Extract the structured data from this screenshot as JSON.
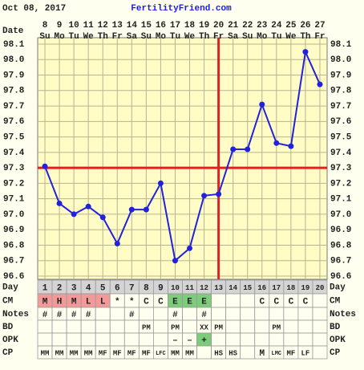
{
  "chart_data": {
    "type": "line",
    "title": "FertilityFriend.com",
    "subtitle": "Oct 08, 2017",
    "x_label": "Date",
    "categories": [
      "8",
      "9",
      "10",
      "11",
      "12",
      "13",
      "14",
      "15",
      "16",
      "17",
      "18",
      "19",
      "20",
      "21",
      "22",
      "23",
      "24",
      "25",
      "26",
      "27"
    ],
    "weekdays": [
      "Su",
      "Mo",
      "Tu",
      "We",
      "Th",
      "Fr",
      "Sa",
      "Su",
      "Mo",
      "Tu",
      "We",
      "Th",
      "Fr",
      "Sa",
      "Su",
      "Mo",
      "Tu",
      "We",
      "Th",
      "Fr"
    ],
    "series": [
      {
        "color": "#2222dd",
        "values": [
          97.31,
          97.07,
          97.0,
          97.05,
          96.98,
          96.81,
          97.03,
          97.03,
          97.2,
          96.7,
          96.78,
          97.12,
          97.13,
          97.42,
          97.42,
          97.71,
          97.46,
          97.44,
          98.05,
          97.84
        ]
      }
    ],
    "ylim": [
      96.6,
      98.1
    ],
    "yticks": [
      96.6,
      96.7,
      96.8,
      96.9,
      {
        "value": 97,
        "label": "97.0"
      },
      97.1,
      97.2,
      97.3,
      97.4,
      97.5,
      97.6,
      97.7,
      97.8,
      97.9,
      {
        "value": 98,
        "label": "98.0"
      },
      98.1
    ],
    "grid": true,
    "coverline": 97.3,
    "coverline_color": "#dd2222",
    "ovulation_day": 13,
    "ovulation_color": "#dd2222"
  },
  "table": {
    "rows": [
      {
        "label": "Day",
        "cells": [
          1,
          2,
          3,
          4,
          5,
          6,
          7,
          8,
          9,
          10,
          11,
          12,
          13,
          14,
          15,
          16,
          17,
          18,
          19,
          20
        ],
        "fill": "#d4d4d4"
      },
      {
        "label": "CM",
        "cells": [
          "M",
          "H",
          "M",
          "L",
          "L",
          "*",
          "*",
          "C",
          "C",
          "E",
          "E",
          "E",
          null,
          null,
          null,
          "C",
          "C",
          "C",
          "C",
          null
        ],
        "colors": [
          "#f29a9a",
          "#f29a9a",
          "#f29a9a",
          "#f29a9a",
          "#f29a9a",
          null,
          null,
          null,
          null,
          "#7ccc7c",
          "#7ccc7c",
          "#7ccc7c",
          null,
          null,
          null,
          null,
          null,
          null,
          null,
          null
        ]
      },
      {
        "label": "Notes",
        "cells": [
          "#",
          "#",
          "#",
          "#",
          null,
          null,
          "#",
          null,
          null,
          "#",
          null,
          "#",
          null,
          null,
          null,
          null,
          null,
          null,
          null,
          null
        ]
      },
      {
        "label": "BD",
        "cells": [
          null,
          null,
          null,
          null,
          null,
          null,
          null,
          "PM",
          null,
          "PM",
          null,
          "XX",
          "PM",
          null,
          null,
          null,
          "PM",
          null,
          null,
          null
        ]
      },
      {
        "label": "OPK",
        "cells": [
          null,
          null,
          null,
          null,
          null,
          null,
          null,
          null,
          null,
          "–",
          "–",
          "+",
          null,
          null,
          null,
          null,
          null,
          null,
          null,
          null
        ],
        "colors": [
          null,
          null,
          null,
          null,
          null,
          null,
          null,
          null,
          null,
          null,
          null,
          "#7ccc7c",
          null,
          null,
          null,
          null,
          null,
          null,
          null,
          null
        ]
      },
      {
        "label": "CP",
        "cells": [
          "MM",
          "MM",
          "MM",
          "MM",
          "MF",
          "MF",
          "MF",
          "MF",
          "LFC",
          "MM",
          "MM",
          null,
          "HS",
          "HS",
          null,
          "M",
          "LMC",
          "MF",
          "LF",
          null
        ]
      }
    ]
  }
}
